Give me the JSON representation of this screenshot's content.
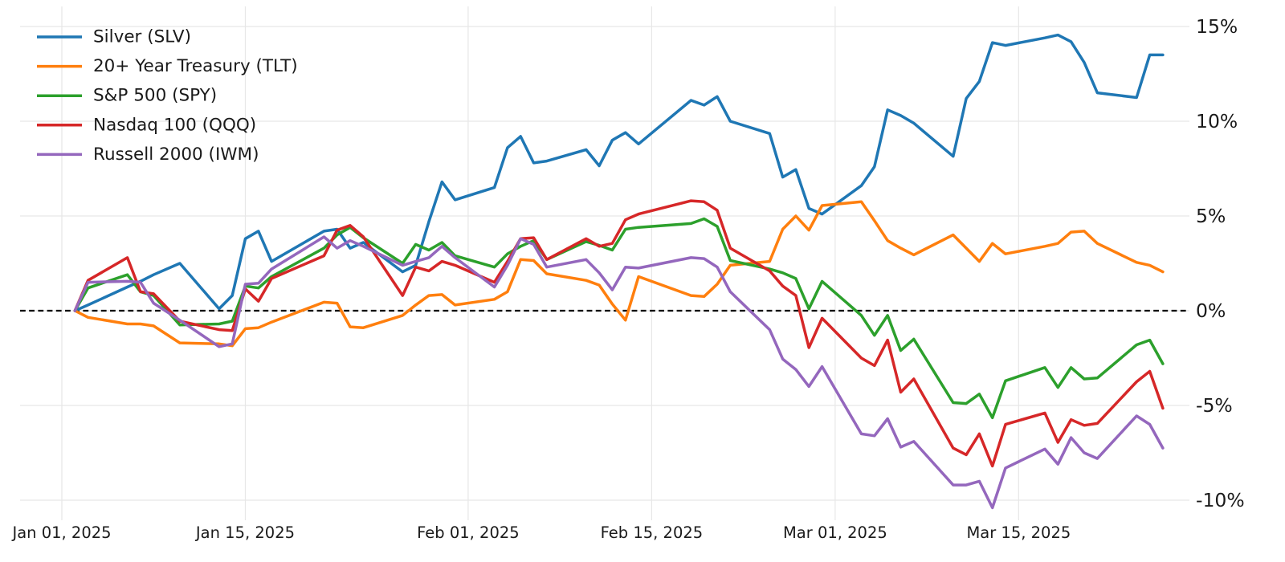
{
  "chart_data": {
    "type": "line",
    "title": "",
    "xlabel": "",
    "ylabel": "",
    "grid": true,
    "legend_position": "top-left",
    "background": "#ffffff",
    "gridline_color": "#e7e7e7",
    "zero_line": {
      "value": 0,
      "style": "dashed",
      "color": "#000000",
      "label": "0%"
    },
    "x_ticks": [
      {
        "date": "2025-01-01",
        "label": "Jan 01, 2025"
      },
      {
        "date": "2025-01-15",
        "label": "Jan 15, 2025"
      },
      {
        "date": "2025-02-01",
        "label": "Feb 01, 2025"
      },
      {
        "date": "2025-02-15",
        "label": "Feb 15, 2025"
      },
      {
        "date": "2025-03-01",
        "label": "Mar 01, 2025"
      },
      {
        "date": "2025-03-15",
        "label": "Mar 15, 2025"
      }
    ],
    "y_ticks": [
      {
        "value": 15,
        "label": "15%"
      },
      {
        "value": 10,
        "label": "10%"
      },
      {
        "value": 5,
        "label": "5%"
      },
      {
        "value": 0,
        "label": "0%"
      },
      {
        "value": -5,
        "label": "-5%"
      },
      {
        "value": -10,
        "label": "-10%"
      }
    ],
    "ylim": [
      -11,
      16
    ],
    "xlim": [
      "2024-12-29",
      "2025-03-28"
    ],
    "unit": "percent-change",
    "dates": [
      "2025-01-02",
      "2025-01-03",
      "2025-01-06",
      "2025-01-07",
      "2025-01-08",
      "2025-01-10",
      "2025-01-13",
      "2025-01-14",
      "2025-01-15",
      "2025-01-16",
      "2025-01-17",
      "2025-01-21",
      "2025-01-22",
      "2025-01-23",
      "2025-01-24",
      "2025-01-27",
      "2025-01-28",
      "2025-01-29",
      "2025-01-30",
      "2025-01-31",
      "2025-02-03",
      "2025-02-04",
      "2025-02-05",
      "2025-02-06",
      "2025-02-07",
      "2025-02-10",
      "2025-02-11",
      "2025-02-12",
      "2025-02-13",
      "2025-02-14",
      "2025-02-18",
      "2025-02-19",
      "2025-02-20",
      "2025-02-21",
      "2025-02-24",
      "2025-02-25",
      "2025-02-26",
      "2025-02-27",
      "2025-02-28",
      "2025-03-03",
      "2025-03-04",
      "2025-03-05",
      "2025-03-06",
      "2025-03-07",
      "2025-03-10",
      "2025-03-11",
      "2025-03-12",
      "2025-03-13",
      "2025-03-14",
      "2025-03-17",
      "2025-03-18",
      "2025-03-19",
      "2025-03-20",
      "2025-03-21",
      "2025-03-24",
      "2025-03-25",
      "2025-03-26"
    ],
    "series": [
      {
        "name": "Silver (SLV)",
        "color": "#1f77b4",
        "values": [
          0,
          0.3,
          1.25,
          1.55,
          1.9,
          2.5,
          0.1,
          0.8,
          3.8,
          4.2,
          2.6,
          4.2,
          4.3,
          3.3,
          3.6,
          2.05,
          2.4,
          4.7,
          6.8,
          5.85,
          6.5,
          8.6,
          9.2,
          7.8,
          7.9,
          8.5,
          7.65,
          9.0,
          9.4,
          8.8,
          11.1,
          10.85,
          11.3,
          10.0,
          9.35,
          7.05,
          7.45,
          5.4,
          5.1,
          6.6,
          7.6,
          10.6,
          10.3,
          9.9,
          8.15,
          11.2,
          12.1,
          14.15,
          14.0,
          14.4,
          14.55,
          14.2,
          13.1,
          11.5,
          11.25,
          13.5,
          13.5
        ]
      },
      {
        "name": "20+ Year Treasury (TLT)",
        "color": "#ff7f0e",
        "values": [
          0,
          -0.35,
          -0.7,
          -0.7,
          -0.8,
          -1.7,
          -1.75,
          -1.85,
          -0.95,
          -0.9,
          -0.6,
          0.45,
          0.4,
          -0.85,
          -0.9,
          -0.25,
          0.3,
          0.8,
          0.85,
          0.3,
          0.6,
          1.0,
          2.7,
          2.65,
          1.95,
          1.6,
          1.35,
          0.35,
          -0.5,
          1.8,
          0.8,
          0.75,
          1.4,
          2.4,
          2.6,
          4.3,
          5.0,
          4.25,
          5.55,
          5.75,
          4.75,
          3.7,
          3.3,
          2.95,
          4.0,
          3.3,
          2.6,
          3.55,
          3.0,
          3.4,
          3.55,
          4.15,
          4.2,
          3.55,
          2.55,
          2.4,
          2.05
        ]
      },
      {
        "name": "S&P 500 (SPY)",
        "color": "#2ca02c",
        "values": [
          0,
          1.2,
          1.9,
          1.0,
          0.8,
          -0.75,
          -0.7,
          -0.55,
          1.3,
          1.2,
          1.8,
          3.3,
          4.0,
          4.4,
          3.85,
          2.5,
          3.5,
          3.2,
          3.6,
          2.9,
          2.3,
          3.0,
          3.4,
          3.7,
          2.7,
          3.65,
          3.45,
          3.2,
          4.3,
          4.4,
          4.6,
          4.85,
          4.45,
          2.65,
          2.2,
          2.0,
          1.7,
          0.1,
          1.55,
          -0.25,
          -1.3,
          -0.25,
          -2.1,
          -1.5,
          -4.85,
          -4.9,
          -4.4,
          -5.65,
          -3.7,
          -3.0,
          -4.05,
          -3.0,
          -3.6,
          -3.55,
          -1.8,
          -1.55,
          -2.8
        ]
      },
      {
        "name": "Nasdaq 100 (QQQ)",
        "color": "#d62728",
        "values": [
          0,
          1.6,
          2.8,
          1.0,
          0.9,
          -0.55,
          -1.0,
          -1.05,
          1.15,
          0.5,
          1.7,
          2.9,
          4.25,
          4.5,
          3.9,
          0.8,
          2.3,
          2.1,
          2.6,
          2.4,
          1.5,
          2.6,
          3.8,
          3.85,
          2.7,
          3.8,
          3.4,
          3.55,
          4.8,
          5.1,
          5.8,
          5.75,
          5.3,
          3.3,
          2.1,
          1.3,
          0.8,
          -1.95,
          -0.4,
          -2.5,
          -2.9,
          -1.55,
          -4.3,
          -3.6,
          -7.25,
          -7.6,
          -6.5,
          -8.2,
          -6.0,
          -5.4,
          -6.95,
          -5.75,
          -6.05,
          -5.95,
          -3.75,
          -3.2,
          -5.15
        ]
      },
      {
        "name": "Russell 2000 (IWM)",
        "color": "#9467bd",
        "values": [
          0,
          1.5,
          1.55,
          1.5,
          0.4,
          -0.5,
          -1.9,
          -1.75,
          1.4,
          1.45,
          2.2,
          3.9,
          3.3,
          3.7,
          3.4,
          2.4,
          2.6,
          2.8,
          3.4,
          2.8,
          1.25,
          2.4,
          3.8,
          3.5,
          2.3,
          2.7,
          2.0,
          1.1,
          2.3,
          2.25,
          2.8,
          2.75,
          2.3,
          1.0,
          -1.0,
          -2.55,
          -3.1,
          -4.0,
          -2.95,
          -6.5,
          -6.6,
          -5.7,
          -7.2,
          -6.9,
          -9.2,
          -9.2,
          -9.0,
          -10.4,
          -8.3,
          -7.3,
          -8.1,
          -6.7,
          -7.5,
          -7.8,
          -5.55,
          -6.0,
          -7.25
        ]
      }
    ]
  }
}
